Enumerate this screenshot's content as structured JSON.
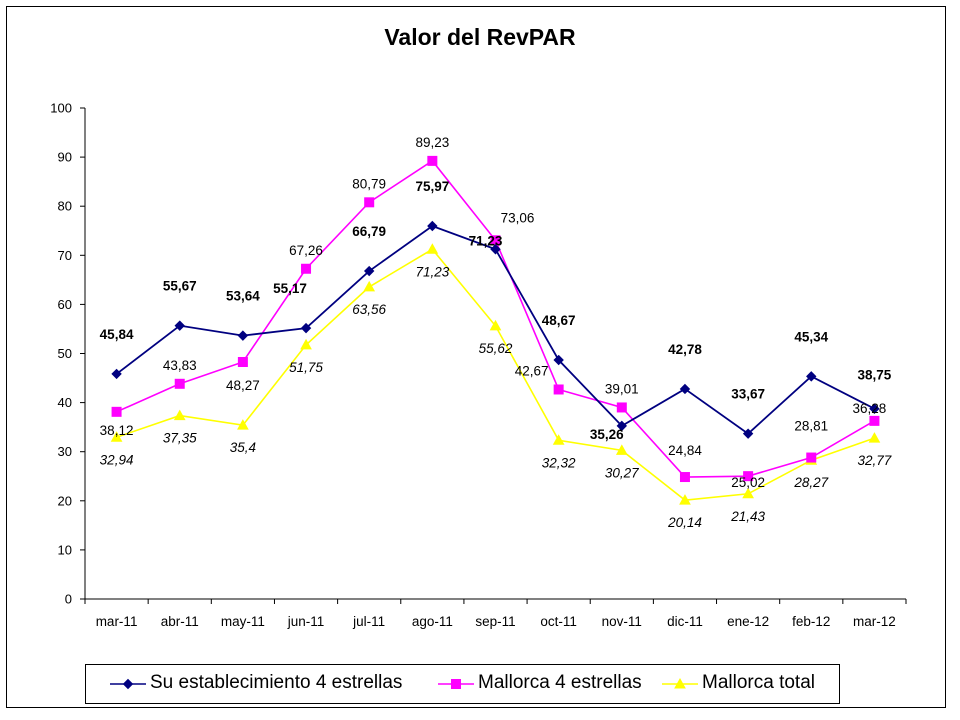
{
  "chart_data": {
    "type": "line",
    "title": "Valor del RevPAR",
    "categories": [
      "mar-11",
      "abr-11",
      "may-11",
      "jun-11",
      "jul-11",
      "ago-11",
      "sep-11",
      "oct-11",
      "nov-11",
      "dic-11",
      "ene-12",
      "feb-12",
      "mar-12"
    ],
    "yticks": [
      "0",
      "10",
      "20",
      "30",
      "40",
      "50",
      "60",
      "70",
      "80",
      "90",
      "100"
    ],
    "ylim": [
      0,
      100
    ],
    "grid": false,
    "legend_position": "bottom",
    "series": [
      {
        "name": "Su establecimiento 4 estrellas",
        "color": "#000080",
        "marker": "diamond",
        "values": [
          45.84,
          55.67,
          53.64,
          55.17,
          66.79,
          75.97,
          71.23,
          48.67,
          35.26,
          42.78,
          33.67,
          45.34,
          38.75
        ],
        "labels": [
          "45,84",
          "55,67",
          "53,64",
          "55,17",
          "66,79",
          "75,97",
          "71,23",
          "48,67",
          "35,26",
          "42,78",
          "33,67",
          "45,34",
          "38,75"
        ]
      },
      {
        "name": "Mallorca 4 estrellas",
        "color": "#ff00ff",
        "marker": "square",
        "values": [
          38.12,
          43.83,
          48.27,
          67.26,
          80.79,
          89.23,
          73.06,
          42.67,
          39.01,
          24.84,
          25.02,
          28.81,
          36.28
        ],
        "labels": [
          "38,12",
          "43,83",
          "48,27",
          "67,26",
          "80,79",
          "89,23",
          "73,06",
          "42,67",
          "39,01",
          "24,84",
          "25,02",
          "28,81",
          "36,28"
        ]
      },
      {
        "name": "Mallorca total",
        "color": "#ffff00",
        "marker": "triangle",
        "values": [
          32.94,
          37.35,
          35.4,
          51.75,
          63.56,
          71.23,
          55.62,
          32.32,
          30.27,
          20.14,
          21.43,
          28.27,
          32.77
        ],
        "labels": [
          "32,94",
          "37,35",
          "35,4",
          "51,75",
          "63,56",
          "71,23",
          "55,62",
          "32,32",
          "30,27",
          "20,14",
          "21,43",
          "28,27",
          "32,77"
        ]
      }
    ]
  }
}
